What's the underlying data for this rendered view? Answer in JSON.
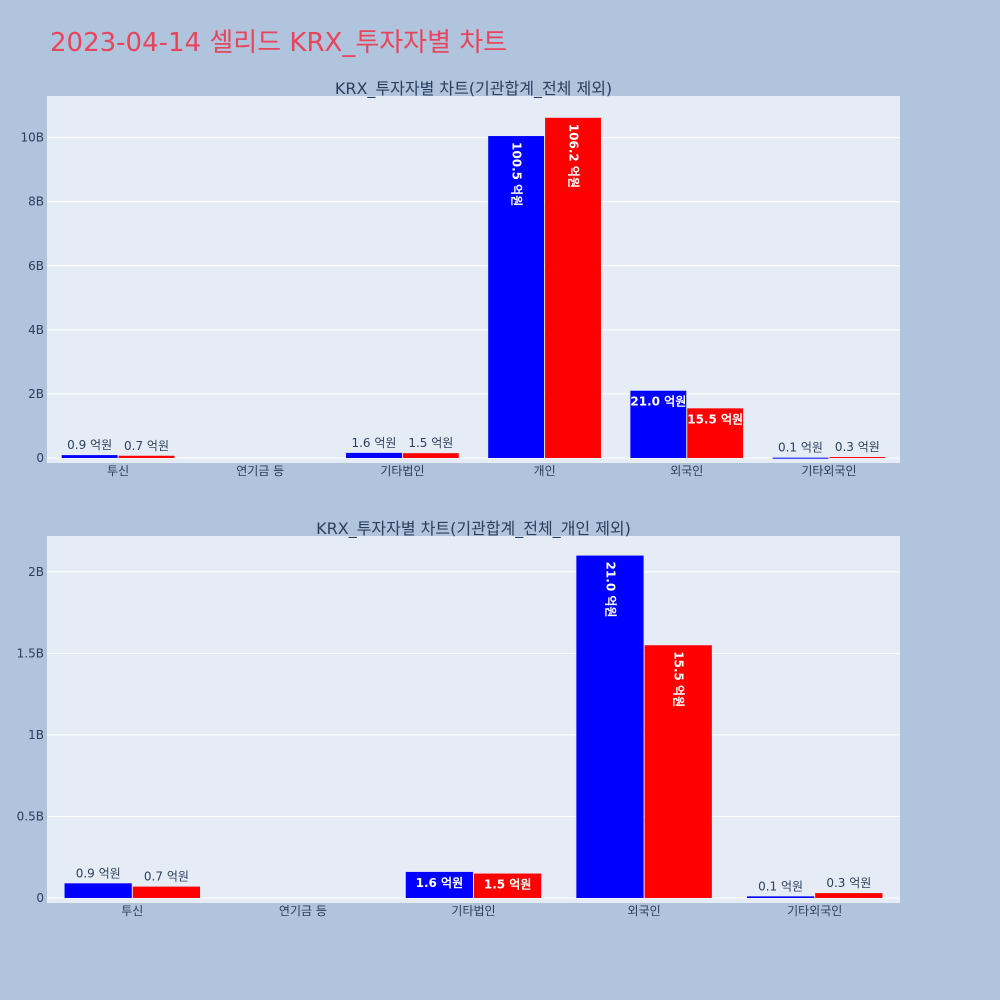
{
  "page": {
    "title": "2023-04-14 셀리드 KRX_투자자별 차트"
  },
  "colors": {
    "background": "#b0c4de",
    "plot_bg": "#e5ecf6",
    "series_1": "#0000ff",
    "series_2": "#ff0000",
    "title": "#e8455a"
  },
  "chart_data": [
    {
      "type": "bar",
      "title": "KRX_투자자별 차트(기관합계_전체 제외)",
      "categories": [
        "투신",
        "연기금 등",
        "기타법인",
        "개인",
        "외국인",
        "기타외국인"
      ],
      "series": [
        {
          "values": [
            90000000,
            0,
            160000000,
            10050000000,
            2100000000,
            10000000
          ],
          "labels": [
            "0.9 억원",
            "",
            "1.6 억원",
            "100.5 억원",
            "21.0 억원",
            "0.1 억원"
          ]
        },
        {
          "values": [
            70000000,
            0,
            150000000,
            10620000000,
            1550000000,
            30000000
          ],
          "labels": [
            "0.7 억원",
            "",
            "1.5 억원",
            "106.2 억원",
            "15.5 억원",
            "0.3 억원"
          ]
        }
      ],
      "ylim": [
        0,
        11300000000
      ],
      "yticks": [
        0,
        2000000000,
        4000000000,
        6000000000,
        8000000000,
        10000000000
      ],
      "ytick_labels": [
        "0",
        "2B",
        "4B",
        "6B",
        "8B",
        "10B"
      ],
      "grid": true
    },
    {
      "type": "bar",
      "title": "KRX_투자자별 차트(기관합계_전체_개인 제외)",
      "categories": [
        "투신",
        "연기금 등",
        "기타법인",
        "외국인",
        "기타외국인"
      ],
      "series": [
        {
          "values": [
            90000000,
            0,
            160000000,
            2100000000,
            10000000
          ],
          "labels": [
            "0.9 억원",
            "",
            "1.6 억원",
            "21.0 억원",
            "0.1 억원"
          ]
        },
        {
          "values": [
            70000000,
            0,
            150000000,
            1550000000,
            30000000
          ],
          "labels": [
            "0.7 억원",
            "",
            "1.5 억원",
            "15.5 억원",
            "0.3 억원"
          ]
        }
      ],
      "ylim": [
        0,
        2220000000
      ],
      "yticks": [
        0,
        500000000,
        1000000000,
        1500000000,
        2000000000
      ],
      "ytick_labels": [
        "0",
        "0.5B",
        "1B",
        "1.5B",
        "2B"
      ],
      "grid": true
    }
  ]
}
